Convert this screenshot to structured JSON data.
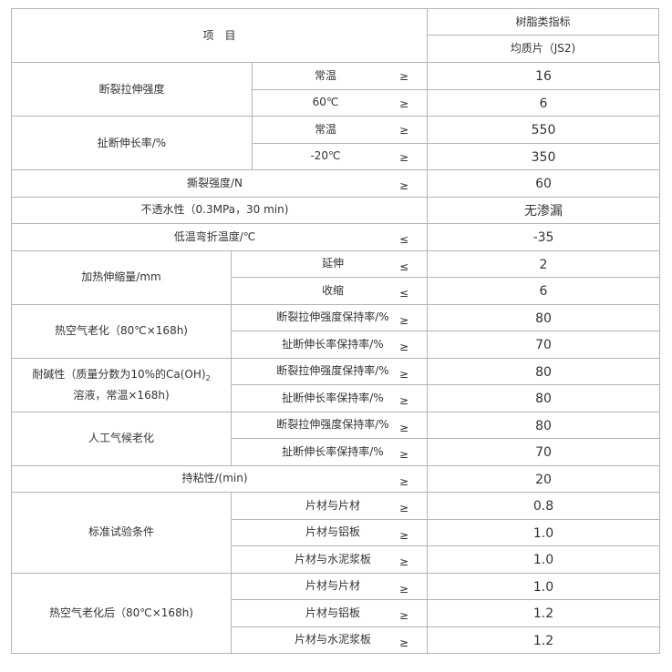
{
  "header": {
    "item_label": "项　目",
    "category": "树脂类指标",
    "type": "均质片（JS2)"
  },
  "groups": [
    {
      "label": "断裂拉伸强度",
      "split": "wide",
      "rows": [
        {
          "sub": "常温",
          "op": "≥",
          "value": "16"
        },
        {
          "sub": "60℃",
          "op": "≥",
          "value": "6"
        }
      ]
    },
    {
      "label": "扯断伸长率/%",
      "split": "wide",
      "rows": [
        {
          "sub": "常温",
          "op": "≥",
          "value": "550"
        },
        {
          "sub": "-20℃",
          "op": "≥",
          "value": "350"
        }
      ]
    },
    {
      "label": "撕裂强度/N",
      "split": "none",
      "rows": [
        {
          "op": "≥",
          "value": "60"
        }
      ]
    },
    {
      "label": "不透水性（0.3MPa，30 min)",
      "split": "none",
      "rows": [
        {
          "op": "",
          "value": "无渗漏"
        }
      ]
    },
    {
      "label": "低温弯折温度/℃",
      "split": "none",
      "rows": [
        {
          "op": "≤",
          "value": "-35"
        }
      ]
    },
    {
      "label": "加热伸缩量/mm",
      "split": "narrow",
      "rows": [
        {
          "sub": "延伸",
          "op": "≤",
          "value": "2"
        },
        {
          "sub": "收缩",
          "op": "≤",
          "value": "6"
        }
      ]
    },
    {
      "label": "热空气老化（80℃×168h)",
      "split": "narrow",
      "rows": [
        {
          "sub": "断裂拉伸强度保持率/%",
          "op": "≥",
          "value": "80"
        },
        {
          "sub": "扯断伸长率保持率/%",
          "op": "≥",
          "value": "70"
        }
      ]
    },
    {
      "label": "耐碱性（质量分数为10%的Ca(OH)",
      "label_subscript": "2",
      "label_line2": "溶液，常温×168h)",
      "split": "narrow",
      "rows": [
        {
          "sub": "断裂拉伸强度保持率/%",
          "op": "≥",
          "value": "80"
        },
        {
          "sub": "扯断伸长率保持率/%",
          "op": "≥",
          "value": "80"
        }
      ]
    },
    {
      "label": "人工气候老化",
      "split": "narrow",
      "rows": [
        {
          "sub": "断裂拉伸强度保持率/%",
          "op": "≥",
          "value": "80"
        },
        {
          "sub": "扯断伸长率保持率/%",
          "op": "≥",
          "value": "70"
        }
      ]
    },
    {
      "label": "持粘性/(min)",
      "split": "none",
      "rows": [
        {
          "op": "≥",
          "value": "20"
        }
      ]
    },
    {
      "label": "标准试验条件",
      "split": "narrow",
      "rows": [
        {
          "sub": "片材与片材",
          "op": "≥",
          "value": "0.8"
        },
        {
          "sub": "片材与铝板",
          "op": "≥",
          "value": "1.0"
        },
        {
          "sub": "片材与水泥浆板",
          "op": "≥",
          "value": "1.0"
        }
      ]
    },
    {
      "label": "热空气老化后（80℃×168h)",
      "split": "narrow",
      "rows": [
        {
          "sub": "片材与片材",
          "op": "≥",
          "value": "1.0"
        },
        {
          "sub": "片材与铝板",
          "op": "≥",
          "value": "1.2"
        },
        {
          "sub": "片材与水泥浆板",
          "op": "≥",
          "value": "1.2"
        }
      ]
    }
  ]
}
